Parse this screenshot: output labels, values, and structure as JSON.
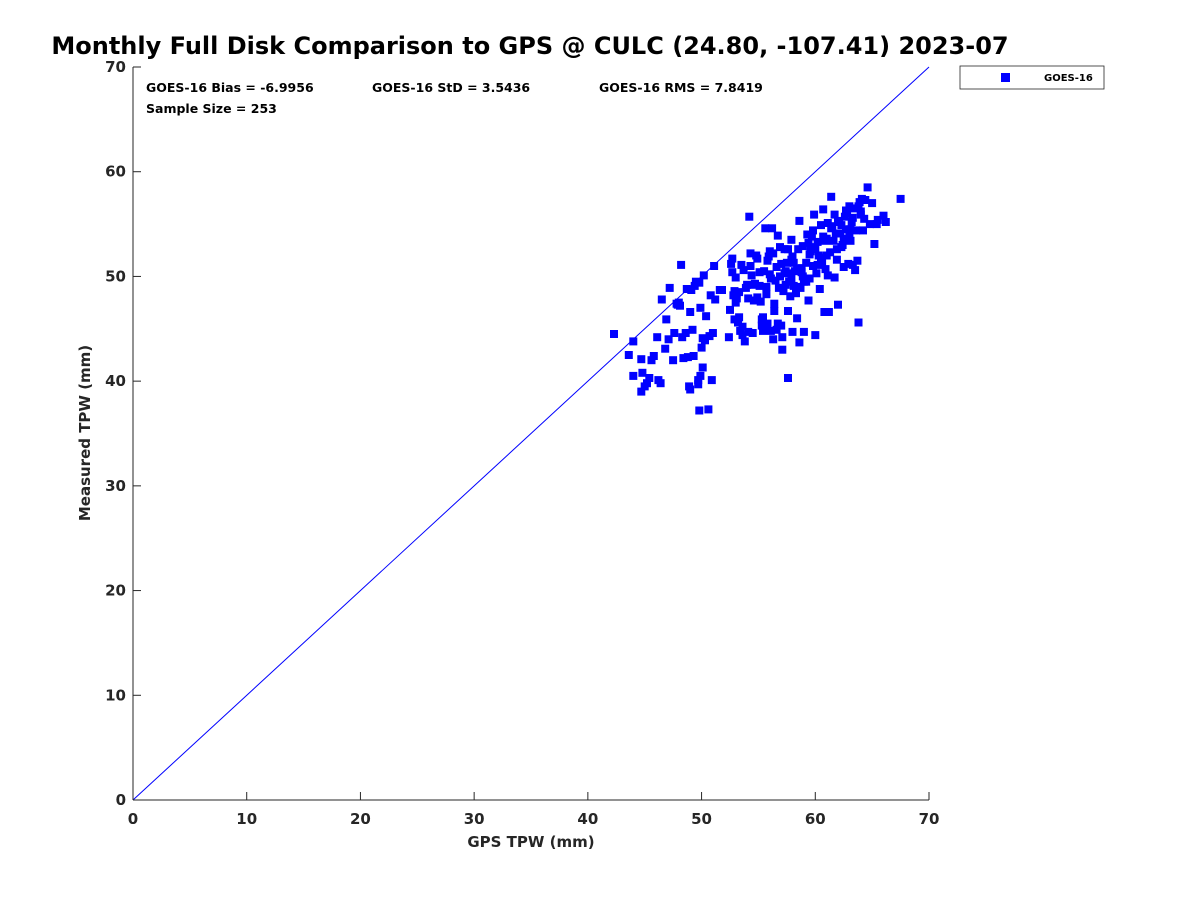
{
  "chart_data": {
    "type": "scatter",
    "title": "Monthly Full Disk Comparison to GPS @ CULC (24.80, -107.41) 2023-07",
    "xlabel": "GPS TPW (mm)",
    "ylabel": "Measured TPW (mm)",
    "xlim": [
      0,
      70
    ],
    "ylim": [
      0,
      70
    ],
    "xticks": [
      0,
      10,
      20,
      30,
      40,
      50,
      60,
      70
    ],
    "yticks": [
      0,
      10,
      20,
      30,
      40,
      50,
      60,
      70
    ],
    "grid": false,
    "legend_position": "outside-top-right",
    "reference_line": {
      "from": [
        0,
        0
      ],
      "to": [
        70,
        70
      ],
      "color": "#0000ff"
    },
    "stats": {
      "bias": "GOES-16 Bias = -6.9956",
      "std": "GOES-16 StD = 3.5436",
      "rms": "GOES-16 RMS = 7.8419",
      "sample": "Sample Size = 253"
    },
    "series": [
      {
        "name": "GOES-16",
        "color": "#0000ff",
        "marker": "square",
        "points": [
          [
            42.3,
            44.5
          ],
          [
            43.6,
            42.5
          ],
          [
            44.0,
            43.8
          ],
          [
            44.0,
            40.5
          ],
          [
            44.7,
            42.1
          ],
          [
            44.7,
            39.0
          ],
          [
            44.8,
            40.8
          ],
          [
            45.0,
            39.5
          ],
          [
            45.2,
            39.8
          ],
          [
            45.4,
            40.3
          ],
          [
            45.6,
            42.0
          ],
          [
            45.8,
            42.4
          ],
          [
            46.1,
            44.2
          ],
          [
            46.2,
            40.1
          ],
          [
            46.4,
            39.8
          ],
          [
            46.5,
            47.8
          ],
          [
            46.8,
            43.1
          ],
          [
            46.9,
            45.9
          ],
          [
            47.1,
            44.0
          ],
          [
            47.2,
            48.9
          ],
          [
            47.5,
            42.0
          ],
          [
            47.6,
            44.6
          ],
          [
            47.8,
            47.4
          ],
          [
            48.0,
            47.5
          ],
          [
            48.1,
            47.2
          ],
          [
            48.2,
            51.1
          ],
          [
            48.3,
            44.2
          ],
          [
            48.4,
            42.2
          ],
          [
            48.6,
            44.6
          ],
          [
            48.8,
            42.3
          ],
          [
            48.9,
            39.5
          ],
          [
            49.0,
            39.2
          ],
          [
            49.0,
            46.6
          ],
          [
            49.1,
            48.7
          ],
          [
            49.2,
            44.9
          ],
          [
            49.3,
            42.4
          ],
          [
            49.4,
            49.1
          ],
          [
            49.5,
            49.5
          ],
          [
            49.7,
            39.7
          ],
          [
            49.7,
            40.1
          ],
          [
            49.8,
            49.4
          ],
          [
            49.8,
            37.2
          ],
          [
            49.9,
            47.0
          ],
          [
            49.9,
            40.5
          ],
          [
            50.0,
            43.2
          ],
          [
            50.1,
            44.1
          ],
          [
            50.1,
            41.3
          ],
          [
            50.2,
            50.1
          ],
          [
            50.3,
            43.9
          ],
          [
            50.6,
            37.3
          ],
          [
            50.7,
            44.3
          ],
          [
            50.8,
            48.2
          ],
          [
            50.9,
            40.1
          ],
          [
            51.0,
            44.6
          ],
          [
            51.1,
            51.0
          ],
          [
            51.2,
            47.8
          ],
          [
            51.8,
            48.7
          ],
          [
            52.4,
            44.2
          ],
          [
            52.5,
            46.8
          ],
          [
            52.6,
            51.2
          ],
          [
            52.7,
            50.4
          ],
          [
            52.8,
            48.2
          ],
          [
            52.9,
            45.9
          ],
          [
            53.0,
            49.9
          ],
          [
            53.1,
            47.9
          ],
          [
            53.2,
            45.6
          ],
          [
            53.3,
            48.5
          ],
          [
            53.4,
            44.8
          ],
          [
            53.5,
            51.1
          ],
          [
            53.6,
            45.2
          ],
          [
            53.6,
            44.4
          ],
          [
            53.7,
            50.6
          ],
          [
            53.8,
            43.8
          ],
          [
            53.9,
            48.9
          ],
          [
            54.0,
            49.2
          ],
          [
            54.1,
            47.9
          ],
          [
            54.1,
            44.7
          ],
          [
            54.2,
            55.7
          ],
          [
            54.3,
            52.2
          ],
          [
            54.3,
            51.0
          ],
          [
            54.5,
            44.6
          ],
          [
            54.6,
            47.7
          ],
          [
            54.7,
            49.3
          ],
          [
            54.8,
            52.0
          ],
          [
            54.9,
            48.0
          ],
          [
            55.1,
            49.1
          ],
          [
            55.2,
            47.6
          ],
          [
            55.3,
            45.3
          ],
          [
            55.4,
            46.1
          ],
          [
            55.4,
            44.8
          ],
          [
            55.5,
            50.5
          ],
          [
            55.6,
            54.6
          ],
          [
            55.7,
            48.3
          ],
          [
            55.8,
            45.5
          ],
          [
            55.9,
            51.9
          ],
          [
            56.0,
            50.2
          ],
          [
            56.1,
            44.8
          ],
          [
            56.1,
            49.8
          ],
          [
            56.2,
            54.6
          ],
          [
            56.3,
            44.0
          ],
          [
            56.4,
            46.7
          ],
          [
            56.5,
            49.6
          ],
          [
            56.6,
            50.9
          ],
          [
            56.7,
            53.9
          ],
          [
            56.7,
            45.5
          ],
          [
            56.8,
            48.9
          ],
          [
            56.9,
            52.8
          ],
          [
            57.0,
            45.3
          ],
          [
            57.1,
            43.0
          ],
          [
            57.1,
            44.2
          ],
          [
            57.2,
            48.6
          ],
          [
            57.3,
            50.3
          ],
          [
            57.4,
            49.2
          ],
          [
            57.5,
            51.3
          ],
          [
            57.6,
            52.6
          ],
          [
            57.6,
            46.7
          ],
          [
            57.7,
            50.3
          ],
          [
            57.8,
            48.1
          ],
          [
            57.9,
            53.5
          ],
          [
            57.9,
            49.8
          ],
          [
            58.0,
            51.9
          ],
          [
            58.0,
            44.7
          ],
          [
            58.1,
            49.1
          ],
          [
            58.2,
            50.5
          ],
          [
            58.3,
            48.4
          ],
          [
            58.4,
            46.0
          ],
          [
            58.5,
            52.6
          ],
          [
            58.6,
            43.7
          ],
          [
            58.7,
            48.9
          ],
          [
            58.8,
            50.4
          ],
          [
            58.9,
            52.9
          ],
          [
            59.0,
            44.7
          ],
          [
            59.1,
            49.7
          ],
          [
            59.2,
            51.3
          ],
          [
            59.3,
            54.0
          ],
          [
            59.4,
            47.7
          ],
          [
            59.5,
            49.8
          ],
          [
            59.6,
            52.8
          ],
          [
            59.7,
            53.8
          ],
          [
            59.8,
            51.0
          ],
          [
            59.9,
            55.9
          ],
          [
            60.0,
            44.4
          ],
          [
            60.1,
            50.3
          ],
          [
            60.2,
            53.3
          ],
          [
            60.3,
            52.0
          ],
          [
            60.4,
            48.8
          ],
          [
            60.5,
            54.9
          ],
          [
            60.6,
            51.4
          ],
          [
            60.7,
            56.4
          ],
          [
            60.8,
            46.6
          ],
          [
            60.9,
            50.7
          ],
          [
            61.0,
            53.6
          ],
          [
            61.1,
            55.1
          ],
          [
            61.2,
            46.6
          ],
          [
            61.3,
            52.3
          ],
          [
            61.4,
            57.6
          ],
          [
            61.5,
            54.8
          ],
          [
            61.6,
            53.4
          ],
          [
            61.7,
            49.9
          ],
          [
            61.8,
            54.1
          ],
          [
            61.9,
            52.6
          ],
          [
            62.0,
            47.3
          ],
          [
            62.1,
            55.3
          ],
          [
            62.2,
            54.1
          ],
          [
            62.3,
            52.8
          ],
          [
            62.4,
            53.0
          ],
          [
            62.5,
            50.9
          ],
          [
            62.6,
            55.7
          ],
          [
            62.7,
            54.5
          ],
          [
            62.8,
            56.0
          ],
          [
            62.9,
            51.2
          ],
          [
            63.0,
            56.7
          ],
          [
            63.1,
            53.4
          ],
          [
            63.2,
            55.2
          ],
          [
            63.3,
            51.1
          ],
          [
            63.4,
            56.5
          ],
          [
            63.5,
            50.6
          ],
          [
            63.6,
            54.4
          ],
          [
            63.7,
            51.5
          ],
          [
            63.8,
            45.6
          ],
          [
            63.9,
            57.1
          ],
          [
            64.0,
            55.9
          ],
          [
            64.1,
            57.4
          ],
          [
            64.2,
            54.4
          ],
          [
            64.4,
            57.3
          ],
          [
            64.6,
            58.5
          ],
          [
            64.8,
            55.0
          ],
          [
            65.0,
            57.0
          ],
          [
            65.2,
            53.1
          ],
          [
            65.5,
            55.4
          ],
          [
            66.0,
            55.8
          ],
          [
            66.2,
            55.2
          ],
          [
            67.5,
            57.4
          ],
          [
            47.9,
            47.3
          ],
          [
            52.9,
            48.6
          ],
          [
            55.3,
            45.9
          ],
          [
            56.6,
            44.9
          ],
          [
            57.2,
            48.9
          ],
          [
            57.9,
            51.6
          ],
          [
            58.4,
            50.7
          ],
          [
            59.0,
            49.5
          ],
          [
            59.8,
            54.4
          ],
          [
            60.5,
            51.8
          ],
          [
            61.0,
            52.0
          ],
          [
            61.7,
            55.9
          ],
          [
            62.3,
            54.9
          ],
          [
            63.1,
            54.5
          ],
          [
            57.6,
            40.3
          ],
          [
            55.8,
            51.5
          ],
          [
            56.3,
            52.2
          ],
          [
            56.9,
            50.0
          ],
          [
            57.3,
            52.6
          ],
          [
            57.7,
            49.5
          ],
          [
            58.1,
            51.3
          ],
          [
            58.6,
            55.3
          ],
          [
            59.2,
            49.5
          ],
          [
            59.6,
            52.4
          ],
          [
            60.2,
            51.1
          ],
          [
            60.9,
            53.4
          ],
          [
            61.4,
            54.6
          ],
          [
            62.0,
            55.2
          ],
          [
            62.7,
            56.3
          ],
          [
            63.3,
            55.6
          ],
          [
            54.6,
            49.2
          ],
          [
            53.3,
            46.1
          ],
          [
            52.7,
            51.7
          ],
          [
            55.1,
            50.4
          ],
          [
            56.4,
            47.4
          ],
          [
            58.8,
            50.8
          ],
          [
            60.0,
            52.6
          ],
          [
            61.1,
            50.1
          ],
          [
            62.5,
            53.6
          ],
          [
            63.8,
            56.7
          ],
          [
            64.3,
            55.5
          ],
          [
            48.7,
            48.8
          ],
          [
            50.4,
            46.2
          ],
          [
            51.6,
            48.7
          ],
          [
            53.0,
            47.5
          ],
          [
            54.4,
            50.1
          ],
          [
            55.7,
            49.0
          ],
          [
            57.0,
            51.2
          ],
          [
            58.3,
            49.0
          ],
          [
            59.5,
            52.1
          ],
          [
            60.7,
            53.8
          ],
          [
            61.9,
            51.6
          ],
          [
            63.0,
            53.9
          ],
          [
            64.0,
            56.2
          ],
          [
            65.4,
            55.0
          ],
          [
            57.4,
            50.5
          ],
          [
            58.9,
            50.0
          ],
          [
            56.0,
            52.4
          ],
          [
            54.9,
            51.7
          ],
          [
            59.4,
            53.2
          ]
        ]
      }
    ]
  }
}
